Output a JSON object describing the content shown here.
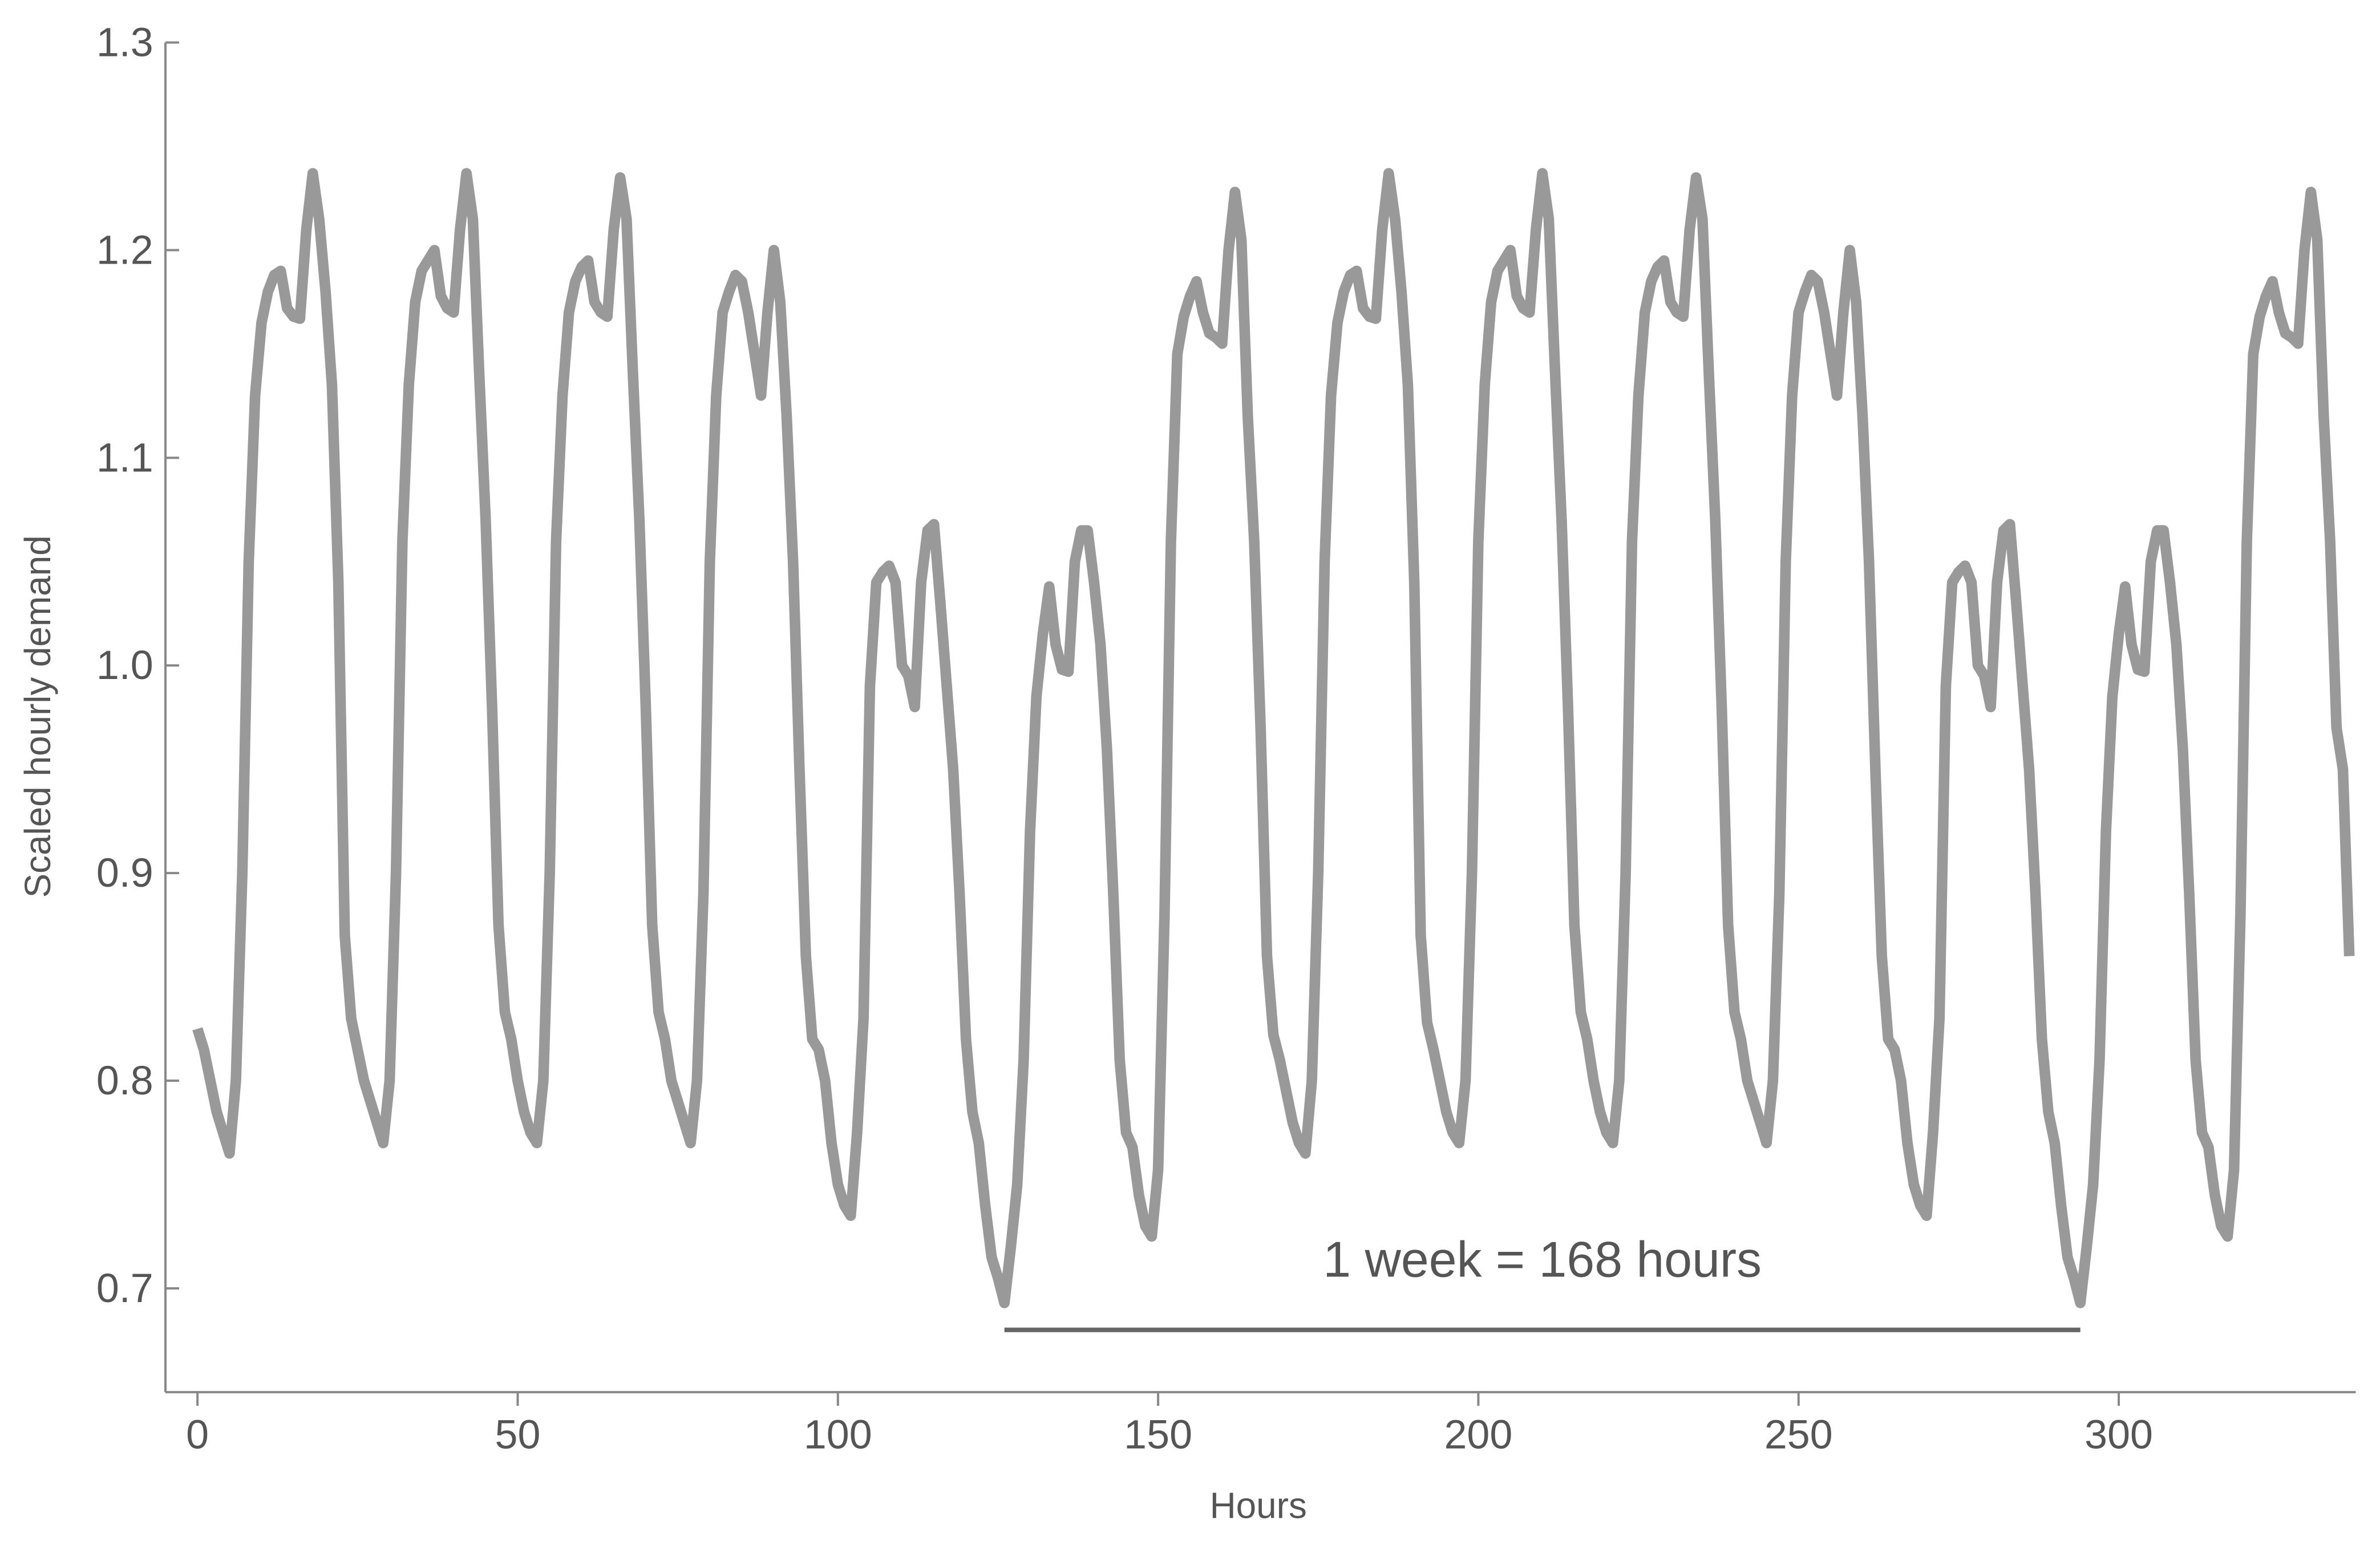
{
  "chart_data": {
    "type": "line",
    "x_label": "Hours",
    "y_label": "Scaled hourly demand",
    "xlim": [
      -5,
      337
    ],
    "ylim": [
      0.65,
      1.3
    ],
    "xticks": [
      0,
      50,
      100,
      150,
      200,
      250,
      300
    ],
    "yticks": [
      0.7,
      0.8,
      0.9,
      {
        "value": 1,
        "label": "1.0"
      },
      1.1,
      1.2,
      1.3
    ],
    "grid": false,
    "x": [
      0,
      1,
      2,
      3,
      4,
      5,
      6,
      7,
      8,
      9,
      10,
      11,
      12,
      13,
      14,
      15,
      16,
      17,
      18,
      19,
      20,
      21,
      22,
      23,
      24,
      25,
      26,
      27,
      28,
      29,
      30,
      31,
      32,
      33,
      34,
      35,
      36,
      37,
      38,
      39,
      40,
      41,
      42,
      43,
      44,
      45,
      46,
      47,
      48,
      49,
      50,
      51,
      52,
      53,
      54,
      55,
      56,
      57,
      58,
      59,
      60,
      61,
      62,
      63,
      64,
      65,
      66,
      67,
      68,
      69,
      70,
      71,
      72,
      73,
      74,
      75,
      76,
      77,
      78,
      79,
      80,
      81,
      82,
      83,
      84,
      85,
      86,
      87,
      88,
      89,
      90,
      91,
      92,
      93,
      94,
      95,
      96,
      97,
      98,
      99,
      100,
      101,
      102,
      103,
      104,
      105,
      106,
      107,
      108,
      109,
      110,
      111,
      112,
      113,
      114,
      115,
      116,
      117,
      118,
      119,
      120,
      121,
      122,
      123,
      124,
      125,
      126,
      127,
      128,
      129,
      130,
      131,
      132,
      133,
      134,
      135,
      136,
      137,
      138,
      139,
      140,
      141,
      142,
      143,
      144,
      145,
      146,
      147,
      148,
      149,
      150,
      151,
      152,
      153,
      154,
      155,
      156,
      157,
      158,
      159,
      160,
      161,
      162,
      163,
      164,
      165,
      166,
      167,
      168,
      169,
      170,
      171,
      172,
      173,
      174,
      175,
      176,
      177,
      178,
      179,
      180,
      181,
      182,
      183,
      184,
      185,
      186,
      187,
      188,
      189,
      190,
      191,
      192,
      193,
      194,
      195,
      196,
      197,
      198,
      199,
      200,
      201,
      202,
      203,
      204,
      205,
      206,
      207,
      208,
      209,
      210,
      211,
      212,
      213,
      214,
      215,
      216,
      217,
      218,
      219,
      220,
      221,
      222,
      223,
      224,
      225,
      226,
      227,
      228,
      229,
      230,
      231,
      232,
      233,
      234,
      235,
      236,
      237,
      238,
      239,
      240,
      241,
      242,
      243,
      244,
      245,
      246,
      247,
      248,
      249,
      250,
      251,
      252,
      253,
      254,
      255,
      256,
      257,
      258,
      259,
      260,
      261,
      262,
      263,
      264,
      265,
      266,
      267,
      268,
      269,
      270,
      271,
      272,
      273,
      274,
      275,
      276,
      277,
      278,
      279,
      280,
      281,
      282,
      283,
      284,
      285,
      286,
      287,
      288,
      289,
      290,
      291,
      292,
      293,
      294,
      295,
      296,
      297,
      298,
      299,
      300,
      301,
      302,
      303,
      304,
      305,
      306,
      307,
      308,
      309,
      310,
      311,
      312,
      313,
      314,
      315,
      316,
      317,
      318,
      319,
      320,
      321,
      322,
      323,
      324,
      325,
      326,
      327,
      328,
      329,
      330,
      331,
      332,
      333,
      334,
      335,
      336
    ],
    "series": [
      {
        "color": "#999999",
        "values": [
          0.825,
          0.815,
          0.8,
          0.785,
          0.775,
          0.765,
          0.8,
          0.9,
          1.05,
          1.13,
          1.165,
          1.18,
          1.188,
          1.19,
          1.172,
          1.168,
          1.167,
          1.21,
          1.237,
          1.215,
          1.18,
          1.135,
          1.04,
          0.87,
          0.83,
          0.815,
          0.8,
          0.79,
          0.78,
          0.77,
          0.8,
          0.9,
          1.06,
          1.135,
          1.175,
          1.19,
          1.195,
          1.2,
          1.178,
          1.172,
          1.17,
          1.21,
          1.237,
          1.215,
          1.14,
          1.07,
          0.98,
          0.875,
          0.833,
          0.82,
          0.8,
          0.785,
          0.775,
          0.77,
          0.8,
          0.9,
          1.06,
          1.13,
          1.17,
          1.185,
          1.192,
          1.195,
          1.175,
          1.17,
          1.168,
          1.21,
          1.235,
          1.215,
          1.14,
          1.07,
          0.98,
          0.875,
          0.833,
          0.82,
          0.8,
          0.79,
          0.78,
          0.77,
          0.8,
          0.89,
          1.05,
          1.13,
          1.17,
          1.18,
          1.188,
          1.185,
          1.17,
          1.15,
          1.13,
          1.17,
          1.2,
          1.175,
          1.12,
          1.05,
          0.95,
          0.86,
          0.82,
          0.815,
          0.8,
          0.77,
          0.75,
          0.74,
          0.735,
          0.775,
          0.83,
          0.99,
          1.04,
          1.045,
          1.048,
          1.04,
          1.0,
          0.995,
          0.98,
          1.04,
          1.065,
          1.068,
          1.03,
          0.99,
          0.95,
          0.89,
          0.82,
          0.785,
          0.77,
          0.74,
          0.715,
          0.705,
          0.693,
          0.72,
          0.75,
          0.81,
          0.92,
          0.985,
          1.015,
          1.038,
          1.01,
          0.998,
          0.997,
          1.05,
          1.065,
          1.065,
          1.04,
          1.01,
          0.96,
          0.89,
          0.81,
          0.775,
          0.768,
          0.745,
          0.73,
          0.725,
          0.757,
          0.88,
          1.06,
          1.15,
          1.168,
          1.178,
          1.185,
          1.17,
          1.16,
          1.158,
          1.155,
          1.2,
          1.228,
          1.205,
          1.12,
          1.06,
          0.97,
          0.86,
          0.822,
          0.81,
          0.795,
          0.78,
          0.77,
          0.765,
          0.8,
          0.9,
          1.05,
          1.13,
          1.165,
          1.18,
          1.188,
          1.19,
          1.172,
          1.168,
          1.167,
          1.21,
          1.237,
          1.215,
          1.18,
          1.135,
          1.04,
          0.87,
          0.828,
          0.815,
          0.8,
          0.785,
          0.775,
          0.77,
          0.8,
          0.9,
          1.06,
          1.135,
          1.175,
          1.19,
          1.195,
          1.2,
          1.178,
          1.172,
          1.17,
          1.21,
          1.237,
          1.215,
          1.14,
          1.07,
          0.98,
          0.875,
          0.833,
          0.82,
          0.8,
          0.785,
          0.775,
          0.77,
          0.8,
          0.9,
          1.06,
          1.13,
          1.17,
          1.185,
          1.192,
          1.195,
          1.175,
          1.17,
          1.168,
          1.21,
          1.235,
          1.215,
          1.14,
          1.07,
          0.98,
          0.875,
          0.833,
          0.82,
          0.8,
          0.79,
          0.78,
          0.77,
          0.8,
          0.89,
          1.05,
          1.13,
          1.17,
          1.18,
          1.188,
          1.185,
          1.17,
          1.15,
          1.13,
          1.17,
          1.2,
          1.175,
          1.12,
          1.05,
          0.95,
          0.86,
          0.82,
          0.815,
          0.8,
          0.77,
          0.75,
          0.74,
          0.735,
          0.775,
          0.83,
          0.99,
          1.04,
          1.045,
          1.048,
          1.04,
          1.0,
          0.995,
          0.98,
          1.04,
          1.065,
          1.068,
          1.03,
          0.99,
          0.95,
          0.89,
          0.82,
          0.785,
          0.77,
          0.74,
          0.715,
          0.705,
          0.693,
          0.72,
          0.75,
          0.81,
          0.92,
          0.985,
          1.015,
          1.038,
          1.01,
          0.998,
          0.997,
          1.05,
          1.065,
          1.065,
          1.04,
          1.01,
          0.96,
          0.89,
          0.81,
          0.775,
          0.768,
          0.745,
          0.73,
          0.725,
          0.757,
          0.88,
          1.06,
          1.15,
          1.168,
          1.178,
          1.185,
          1.17,
          1.16,
          1.158,
          1.155,
          1.2,
          1.228,
          1.205,
          1.12,
          1.06,
          0.97,
          0.95,
          0.86
        ]
      }
    ],
    "annotation": {
      "text": "1 week = 168 hours",
      "x": [
        126,
        294
      ],
      "y": 0.68
    }
  }
}
